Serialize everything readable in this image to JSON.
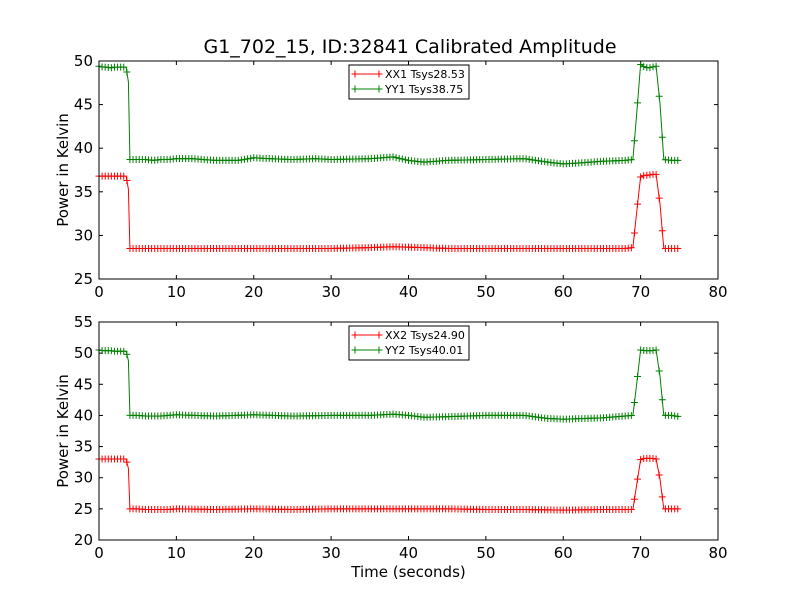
{
  "title": "G1_702_15, ID:32841 Calibrated Amplitude",
  "chart_data": [
    {
      "type": "line",
      "xlabel": "",
      "ylabel": "Power in Kelvin",
      "xlim": [
        0,
        80
      ],
      "ylim": [
        25,
        50
      ],
      "xticks": [
        "0",
        "10",
        "20",
        "30",
        "40",
        "50",
        "60",
        "70",
        "80"
      ],
      "yticks": [
        "25",
        "30",
        "35",
        "40",
        "45",
        "50"
      ],
      "legend_position": "top-center",
      "series": [
        {
          "name": "XX1 Tsys28.53",
          "color": "#ff0000",
          "marker": "+",
          "x": [
            0,
            0.5,
            1,
            1.5,
            2,
            2.5,
            3,
            3.5,
            3.8,
            4,
            5,
            6,
            7,
            8,
            9,
            10,
            15,
            20,
            25,
            30,
            35,
            38,
            42,
            45,
            50,
            55,
            60,
            65,
            68,
            69,
            69.5,
            70,
            70.5,
            71,
            71.5,
            72,
            72.5,
            73,
            74,
            75
          ],
          "y": [
            36.8,
            36.8,
            36.8,
            36.8,
            36.8,
            36.8,
            36.8,
            36.8,
            35.3,
            28.5,
            28.5,
            28.5,
            28.5,
            28.5,
            28.5,
            28.5,
            28.5,
            28.5,
            28.5,
            28.5,
            28.6,
            28.7,
            28.6,
            28.5,
            28.5,
            28.5,
            28.5,
            28.5,
            28.5,
            28.6,
            32.8,
            36.7,
            36.9,
            36.9,
            37.0,
            37.0,
            33.6,
            28.5,
            28.5,
            28.5
          ]
        },
        {
          "name": "YY1 Tsys38.75",
          "color": "#008000",
          "marker": "+",
          "x": [
            0,
            0.5,
            1,
            1.5,
            2,
            2.5,
            3,
            3.5,
            3.8,
            4,
            5,
            6,
            7,
            8,
            9,
            10,
            12,
            15,
            18,
            20,
            22,
            25,
            28,
            30,
            35,
            38,
            40,
            42,
            45,
            50,
            55,
            58,
            60,
            62,
            65,
            68,
            69,
            69.5,
            70,
            70.5,
            71,
            71.5,
            72,
            72.5,
            73,
            74,
            75
          ],
          "y": [
            49.4,
            49.3,
            49.3,
            49.2,
            49.3,
            49.3,
            49.3,
            49.3,
            47.6,
            38.7,
            38.7,
            38.7,
            38.6,
            38.7,
            38.7,
            38.8,
            38.8,
            38.6,
            38.6,
            38.9,
            38.8,
            38.7,
            38.8,
            38.7,
            38.8,
            39.0,
            38.6,
            38.4,
            38.6,
            38.7,
            38.8,
            38.4,
            38.2,
            38.3,
            38.5,
            38.6,
            38.7,
            44.1,
            49.6,
            49.3,
            49.2,
            49.3,
            49.4,
            45.1,
            38.7,
            38.6,
            38.6
          ]
        }
      ]
    },
    {
      "type": "line",
      "xlabel": "Time (seconds)",
      "ylabel": "Power in Kelvin",
      "xlim": [
        0,
        80
      ],
      "ylim": [
        20,
        55
      ],
      "xticks": [
        "0",
        "10",
        "20",
        "30",
        "40",
        "50",
        "60",
        "70",
        "80"
      ],
      "yticks": [
        "20",
        "25",
        "30",
        "35",
        "40",
        "45",
        "50",
        "55"
      ],
      "legend_position": "top-center",
      "series": [
        {
          "name": "XX2 Tsys24.90",
          "color": "#ff0000",
          "marker": "+",
          "x": [
            0,
            0.5,
            1,
            1.5,
            2,
            2.5,
            3,
            3.5,
            3.8,
            4,
            5,
            6,
            7,
            8,
            9,
            10,
            15,
            20,
            25,
            30,
            35,
            40,
            45,
            50,
            55,
            60,
            65,
            68,
            69,
            69.5,
            70,
            70.5,
            71,
            71.5,
            72,
            72.5,
            73,
            74,
            75
          ],
          "y": [
            33.0,
            33.0,
            33.0,
            33.0,
            33.0,
            33.0,
            33.0,
            33.0,
            31.5,
            25.0,
            25.0,
            24.9,
            24.9,
            24.9,
            24.9,
            25.0,
            24.9,
            25.0,
            24.9,
            25.0,
            25.0,
            25.0,
            25.0,
            24.9,
            24.9,
            24.8,
            24.9,
            24.9,
            24.9,
            29.0,
            32.9,
            33.1,
            33.1,
            33.1,
            33.0,
            29.8,
            25.0,
            25.0,
            25.0
          ]
        },
        {
          "name": "YY2 Tsys40.01",
          "color": "#008000",
          "marker": "+",
          "x": [
            0,
            0.5,
            1,
            1.5,
            2,
            2.5,
            3,
            3.5,
            3.8,
            4,
            5,
            6,
            7,
            8,
            9,
            10,
            15,
            20,
            25,
            30,
            35,
            38,
            40,
            42,
            45,
            50,
            55,
            58,
            60,
            65,
            68,
            69,
            69.5,
            70,
            70.5,
            71,
            71.5,
            72,
            72.5,
            73,
            74,
            75
          ],
          "y": [
            50.5,
            50.4,
            50.4,
            50.4,
            50.3,
            50.3,
            50.3,
            50.3,
            48.8,
            40.0,
            40.0,
            39.9,
            39.9,
            39.9,
            40.0,
            40.1,
            39.9,
            40.1,
            39.9,
            40.0,
            40.0,
            40.2,
            40.0,
            39.7,
            39.8,
            40.0,
            40.0,
            39.5,
            39.4,
            39.6,
            39.9,
            40.0,
            45.2,
            50.5,
            50.4,
            50.4,
            50.4,
            50.5,
            46.3,
            40.0,
            40.0,
            39.8
          ]
        }
      ]
    }
  ]
}
